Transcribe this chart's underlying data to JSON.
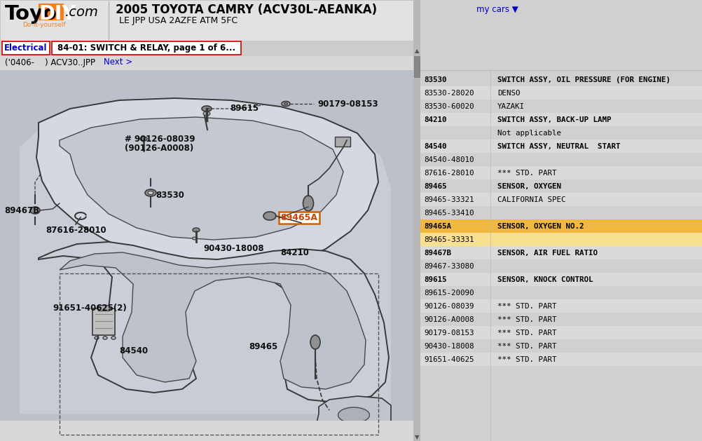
{
  "title": "2005 TOYOTA CAMRY (ACV30L-AEANKA)",
  "subtitle": "LE JPP USA 2AZFE ATM 5FC",
  "my_cars_text": "my cars ▼",
  "logo_toyo": "Toyo",
  "logo_diy": "DIY",
  "logo_com": ".com",
  "logo_tagline": "Do-it-yourself",
  "tab_electrical": "Electrical",
  "tab_relay": "84-01: SWITCH & RELAY, page 1 of 6...",
  "breadcrumb": "('0406-    ) ACV30..JPP",
  "next_text": "Next >",
  "bg_color": "#d8d8d8",
  "header_bg": "#e4e4e4",
  "orange_color": "#f28020",
  "dark_orange": "#d06000",
  "blue_text": "#0000cc",
  "red_border": "#cc0000",
  "highlight_row_bg": "#f0b840",
  "highlight_row_light": "#f8e090",
  "diagram_bg": "#bcc0c8",
  "parts": [
    [
      "83530",
      "SWITCH ASSY, OIL PRESSURE (FOR ENGINE)",
      true,
      false
    ],
    [
      "83530-28020",
      "DENSO",
      false,
      false
    ],
    [
      "83530-60020",
      "YAZAKI",
      false,
      false
    ],
    [
      "84210",
      "SWITCH ASSY, BACK-UP LAMP",
      true,
      false
    ],
    [
      "",
      "Not applicable",
      false,
      false
    ],
    [
      "84540",
      "SWITCH ASSY, NEUTRAL  START",
      true,
      false
    ],
    [
      "84540-48010",
      "",
      false,
      false
    ],
    [
      "87616-28010",
      "*** STD. PART",
      false,
      false
    ],
    [
      "89465",
      "SENSOR, OXYGEN",
      true,
      false
    ],
    [
      "89465-33321",
      "CALIFORNIA SPEC",
      false,
      false
    ],
    [
      "89465-33410",
      "",
      false,
      false
    ],
    [
      "89465A",
      "SENSOR, OXYGEN NO.2",
      true,
      true
    ],
    [
      "89465-33331",
      "",
      false,
      true
    ],
    [
      "89467B",
      "SENSOR, AIR FUEL RATIO",
      true,
      false
    ],
    [
      "89467-33080",
      "",
      false,
      false
    ],
    [
      "89615",
      "SENSOR, KNOCK CONTROL",
      true,
      false
    ],
    [
      "89615-20090",
      "",
      false,
      false
    ],
    [
      "90126-08039",
      "*** STD. PART",
      false,
      false
    ],
    [
      "90126-A0008",
      "*** STD. PART",
      false,
      false
    ],
    [
      "90179-08153",
      "*** STD. PART",
      false,
      false
    ],
    [
      "90430-18008",
      "*** STD. PART",
      false,
      false
    ],
    [
      "91651-40625",
      "*** STD. PART",
      false,
      false
    ]
  ]
}
